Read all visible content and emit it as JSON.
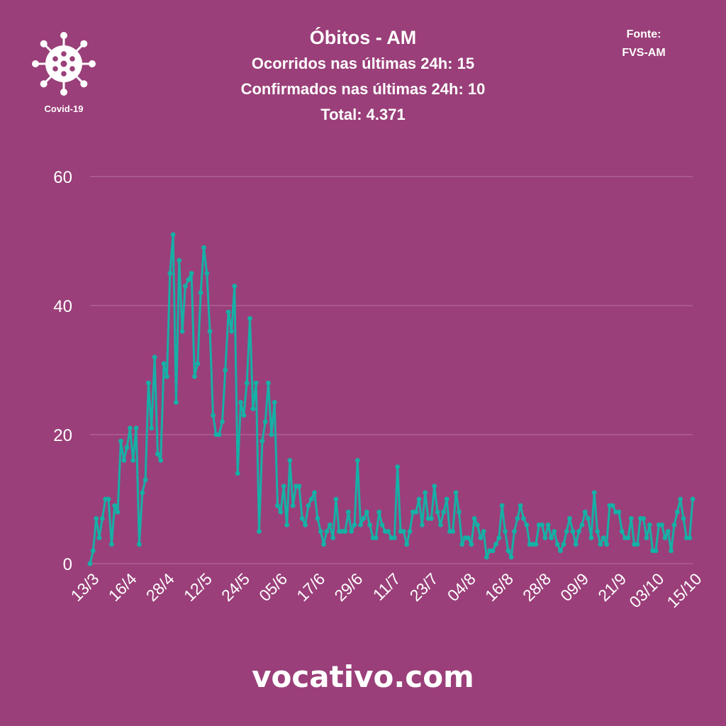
{
  "header": {
    "title": "Óbitos - AM",
    "line1": "Ocorridos nas últimas 24h: 15",
    "line2": "Confirmados nas últimas 24h: 10",
    "line3": "Total: 4.371"
  },
  "source": {
    "label": "Fonte:",
    "value": "FVS-AM"
  },
  "logo": {
    "icon": "virus-icon",
    "label": "Covid-19"
  },
  "footer": {
    "text": "vocativo.com"
  },
  "colors": {
    "background": "#9a3f79",
    "line": "#16b0a6",
    "grid": "#b870a0",
    "text": "#ffffff"
  },
  "chart_data": {
    "type": "line",
    "title": "Óbitos - AM",
    "xlabel": "",
    "ylabel": "",
    "ylim": [
      0,
      60
    ],
    "yticks": [
      0,
      20,
      40,
      60
    ],
    "grid": true,
    "xtick_labels": [
      "13/3",
      "16/4",
      "28/4",
      "12/5",
      "24/5",
      "05/6",
      "17/6",
      "29/6",
      "11/7",
      "23/7",
      "04/8",
      "16/8",
      "28/8",
      "09/9",
      "21/9",
      "03/10",
      "15/10"
    ],
    "series": [
      {
        "values": [
          0,
          2,
          7,
          4,
          7,
          10,
          10,
          3,
          9,
          8,
          19,
          16,
          18,
          21,
          16,
          21,
          3,
          11,
          13,
          28,
          21,
          32,
          17,
          16,
          31,
          29,
          45,
          51,
          25,
          47,
          36,
          43,
          44,
          45,
          29,
          31,
          42,
          49,
          45,
          36,
          23,
          20,
          20,
          22,
          30,
          39,
          36,
          43,
          14,
          25,
          23,
          28,
          38,
          24,
          28,
          5,
          19,
          22,
          28,
          20,
          25,
          9,
          8,
          12,
          6,
          16,
          9,
          12,
          12,
          7,
          6,
          9,
          10,
          11,
          7,
          5,
          3,
          5,
          6,
          4,
          10,
          5,
          5,
          5,
          8,
          5,
          6,
          16,
          6,
          7,
          8,
          6,
          4,
          4,
          8,
          6,
          5,
          5,
          4,
          4,
          15,
          5,
          5,
          3,
          5,
          8,
          8,
          10,
          6,
          11,
          7,
          7,
          12,
          8,
          6,
          8,
          10,
          5,
          5,
          11,
          8,
          3,
          4,
          4,
          3,
          7,
          6,
          4,
          5,
          1,
          2,
          2,
          3,
          4,
          9,
          5,
          2,
          1,
          5,
          7,
          9,
          7,
          6,
          3,
          3,
          3,
          6,
          6,
          4,
          6,
          4,
          5,
          3,
          2,
          3,
          5,
          7,
          5,
          3,
          5,
          6,
          8,
          7,
          4,
          11,
          5,
          3,
          4,
          3,
          9,
          9,
          8,
          8,
          5,
          4,
          4,
          7,
          3,
          3,
          7,
          7,
          4,
          6,
          2,
          2,
          6,
          6,
          4,
          5,
          2,
          6,
          8,
          10,
          7,
          4,
          4,
          10
        ]
      }
    ]
  }
}
